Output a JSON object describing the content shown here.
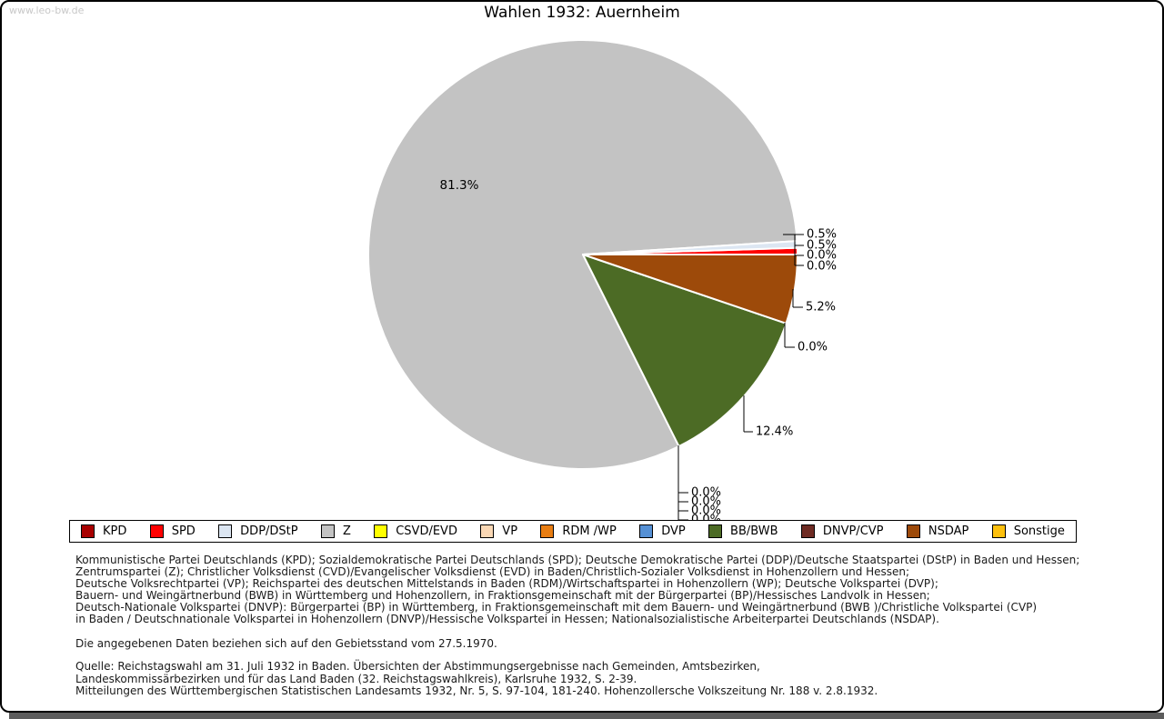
{
  "watermark": "www.leo-bw.de",
  "chart_data": {
    "type": "pie",
    "title": "Wahlen 1932: Auernheim",
    "unit": "%",
    "start_angle": 0,
    "direction": "counterclockwise",
    "legend_position": "bottom",
    "series": [
      {
        "name": "KPD",
        "value": 0.0,
        "color": "#A80000"
      },
      {
        "name": "SPD",
        "value": 0.5,
        "color": "#FF0000"
      },
      {
        "name": "DDP/DStP",
        "value": 0.5,
        "color": "#DCE6F2"
      },
      {
        "name": "Z",
        "value": 81.3,
        "color": "#C3C3C3"
      },
      {
        "name": "CSVD/EVD",
        "value": 0.0,
        "color": "#FFFF00"
      },
      {
        "name": "VP",
        "value": 0.0,
        "color": "#FAD8B5"
      },
      {
        "name": "RDM /WP",
        "value": 0.0,
        "color": "#E87D12"
      },
      {
        "name": "DVP",
        "value": 0.0,
        "color": "#5590D5"
      },
      {
        "name": "BB/BWB",
        "value": 12.4,
        "color": "#4C6B25"
      },
      {
        "name": "DNVP/CVP",
        "value": 0.0,
        "color": "#6E2B23"
      },
      {
        "name": "NSDAP",
        "value": 5.2,
        "color": "#9D4A0A"
      },
      {
        "name": "Sonstige",
        "value": 0.0,
        "color": "#FDC00D"
      }
    ]
  },
  "notes": {
    "explanation_lines": [
      "Kommunistische Partei Deutschlands (KPD); Sozialdemokratische Partei Deutschlands (SPD); Deutsche Demokratische Partei (DDP)/Deutsche Staatspartei (DStP) in Baden und Hessen;",
      "Zentrumspartei (Z); Christlicher Volksdienst (CVD)/Evangelischer Volksdienst (EVD) in Baden/Christlich-Sozialer Volksdienst in Hohenzollern und Hessen;",
      "Deutsche Volksrechtpartei (VP); Reichspartei des deutschen Mittelstands in Baden (RDM)/Wirtschaftspartei in Hohenzollern (WP); Deutsche Volkspartei (DVP);",
      "Bauern- und Weingärtnerbund (BWB) in Württemberg und Hohenzollern, in Fraktionsgemeinschaft mit der Bürgerpartei (BP)/Hessisches Landvolk in Hessen;",
      "Deutsch-Nationale Volkspartei (DNVP): Bürgerpartei (BP) in Württemberg, in Fraktionsgemeinschaft mit dem Bauern- und Weingärtnerbund (BWB )/Christliche Volkspartei (CVP)",
      "in Baden / Deutschnationale Volkspartei in Hohenzollern (DNVP)/Hessische Volkspartei in Hessen; Nationalsozialistische Arbeiterpartei Deutschlands (NSDAP)."
    ],
    "gebietsstand": "Die angegebenen Daten beziehen sich auf den Gebietsstand vom 27.5.1970.",
    "quelle_lines": [
      "Quelle: Reichstagswahl am 31. Juli 1932 in Baden. Übersichten der Abstimmungsergebnisse nach Gemeinden, Amtsbezirken,",
      "Landeskommissärbezirken und für das Land Baden (32. Reichstagswahlkreis), Karlsruhe 1932, S. 2-39.",
      "Mitteilungen des Württembergischen Statistischen Landesamts 1932, Nr. 5, S. 97-104, 181-240. Hohenzollersche Volkszeitung Nr. 188 v. 2.8.1932."
    ]
  }
}
